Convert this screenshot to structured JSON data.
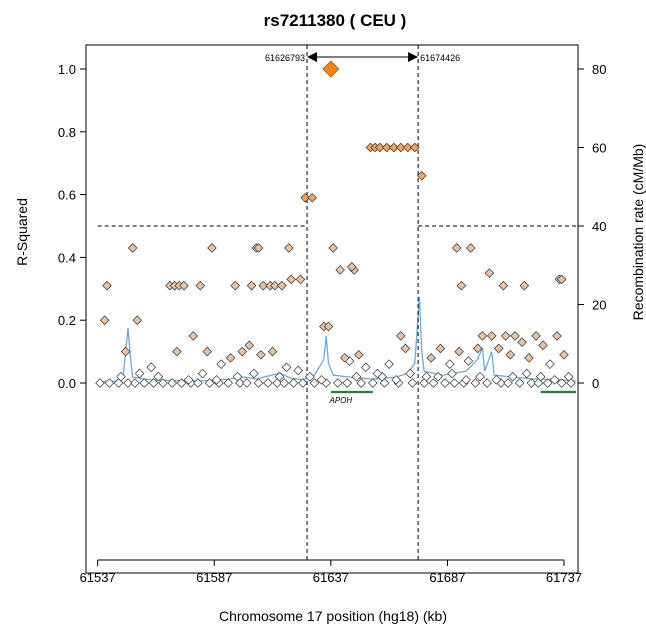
{
  "chart_data": {
    "type": "scatter",
    "title": "rs7211380 ( CEU )",
    "xlabel": "Chromosome 17 position (hg18) (kb)",
    "ylabel": "R-Squared",
    "y2label": "Recombination rate (cM/Mb)",
    "xlim": [
      61532,
      61743
    ],
    "ylim": [
      0,
      1.05
    ],
    "y2lim": [
      0,
      84
    ],
    "xticks": [
      "61537",
      "61587",
      "61637",
      "61687",
      "61737"
    ],
    "yticks": [
      "0.0",
      "0.2",
      "0.4",
      "0.6",
      "0.8",
      "1.0"
    ],
    "y2ticks": [
      "0",
      "20",
      "40",
      "60",
      "80"
    ],
    "threshold_r2": 0.5,
    "region": {
      "start": 61626.793,
      "end": 61674.426,
      "start_label": "61626793",
      "end_label": "61674426"
    },
    "index_snp": {
      "x": 61637,
      "r2": 1.0
    },
    "colors": {
      "index": "#f58220",
      "strong": "#f4a460",
      "medium": "#e9c2a6",
      "weak": "#ffffff",
      "recomb": "#6fa8dc",
      "gene": "#2e7d32"
    },
    "genes": [
      {
        "name": "APOH",
        "start": 61637,
        "end": 61655
      },
      {
        "name": "",
        "start": 61727,
        "end": 61743
      }
    ],
    "snps": [
      {
        "x": 61626,
        "r2": 0.59
      },
      {
        "x": 61629,
        "r2": 0.59
      },
      {
        "x": 61654,
        "r2": 0.75
      },
      {
        "x": 61656,
        "r2": 0.75
      },
      {
        "x": 61658,
        "r2": 0.75
      },
      {
        "x": 61661,
        "r2": 0.75
      },
      {
        "x": 61664,
        "r2": 0.75
      },
      {
        "x": 61667,
        "r2": 0.75
      },
      {
        "x": 61670,
        "r2": 0.75
      },
      {
        "x": 61673,
        "r2": 0.75
      },
      {
        "x": 61676,
        "r2": 0.66
      },
      {
        "x": 61540,
        "r2": 0.2
      },
      {
        "x": 61541,
        "r2": 0.31
      },
      {
        "x": 61552,
        "r2": 0.43
      },
      {
        "x": 61554,
        "r2": 0.2
      },
      {
        "x": 61568,
        "r2": 0.31
      },
      {
        "x": 61570,
        "r2": 0.31
      },
      {
        "x": 61572,
        "r2": 0.31
      },
      {
        "x": 61574,
        "r2": 0.31
      },
      {
        "x": 61581,
        "r2": 0.31
      },
      {
        "x": 61586,
        "r2": 0.43
      },
      {
        "x": 61596,
        "r2": 0.31
      },
      {
        "x": 61603,
        "r2": 0.31
      },
      {
        "x": 61605,
        "r2": 0.43
      },
      {
        "x": 61606,
        "r2": 0.43
      },
      {
        "x": 61608,
        "r2": 0.31
      },
      {
        "x": 61611,
        "r2": 0.31
      },
      {
        "x": 61613,
        "r2": 0.31
      },
      {
        "x": 61616,
        "r2": 0.31
      },
      {
        "x": 61619,
        "r2": 0.43
      },
      {
        "x": 61620,
        "r2": 0.33
      },
      {
        "x": 61624,
        "r2": 0.33
      },
      {
        "x": 61634,
        "r2": 0.18
      },
      {
        "x": 61636,
        "r2": 0.18
      },
      {
        "x": 61638,
        "r2": 0.43
      },
      {
        "x": 61641,
        "r2": 0.36
      },
      {
        "x": 61647,
        "r2": 0.36
      },
      {
        "x": 61646,
        "r2": 0.37
      },
      {
        "x": 61667,
        "r2": 0.15
      },
      {
        "x": 61669,
        "r2": 0.11
      },
      {
        "x": 61691,
        "r2": 0.43
      },
      {
        "x": 61693,
        "r2": 0.31
      },
      {
        "x": 61697,
        "r2": 0.43
      },
      {
        "x": 61705,
        "r2": 0.35
      },
      {
        "x": 61711,
        "r2": 0.31
      },
      {
        "x": 61720,
        "r2": 0.31
      },
      {
        "x": 61735,
        "r2": 0.33
      },
      {
        "x": 61736,
        "r2": 0.33
      },
      {
        "x": 61549,
        "r2": 0.1
      },
      {
        "x": 61560,
        "r2": 0.05
      },
      {
        "x": 61571,
        "r2": 0.1
      },
      {
        "x": 61578,
        "r2": 0.15
      },
      {
        "x": 61584,
        "r2": 0.1
      },
      {
        "x": 61590,
        "r2": 0.06
      },
      {
        "x": 61594,
        "r2": 0.08
      },
      {
        "x": 61599,
        "r2": 0.1
      },
      {
        "x": 61602,
        "r2": 0.12
      },
      {
        "x": 61607,
        "r2": 0.09
      },
      {
        "x": 61612,
        "r2": 0.1
      },
      {
        "x": 61618,
        "r2": 0.05
      },
      {
        "x": 61623,
        "r2": 0.04
      },
      {
        "x": 61643,
        "r2": 0.08
      },
      {
        "x": 61645,
        "r2": 0.07
      },
      {
        "x": 61649,
        "r2": 0.09
      },
      {
        "x": 61652,
        "r2": 0.05
      },
      {
        "x": 61657,
        "r2": 0.03
      },
      {
        "x": 61662,
        "r2": 0.06
      },
      {
        "x": 61680,
        "r2": 0.08
      },
      {
        "x": 61684,
        "r2": 0.11
      },
      {
        "x": 61688,
        "r2": 0.06
      },
      {
        "x": 61692,
        "r2": 0.1
      },
      {
        "x": 61696,
        "r2": 0.07
      },
      {
        "x": 61700,
        "r2": 0.11
      },
      {
        "x": 61702,
        "r2": 0.15
      },
      {
        "x": 61706,
        "r2": 0.15
      },
      {
        "x": 61709,
        "r2": 0.11
      },
      {
        "x": 61712,
        "r2": 0.15
      },
      {
        "x": 61714,
        "r2": 0.09
      },
      {
        "x": 61716,
        "r2": 0.15
      },
      {
        "x": 61719,
        "r2": 0.13
      },
      {
        "x": 61722,
        "r2": 0.08
      },
      {
        "x": 61725,
        "r2": 0.15
      },
      {
        "x": 61728,
        "r2": 0.12
      },
      {
        "x": 61731,
        "r2": 0.06
      },
      {
        "x": 61734,
        "r2": 0.15
      },
      {
        "x": 61737,
        "r2": 0.09
      },
      {
        "x": 61547,
        "r2": 0.02
      },
      {
        "x": 61555,
        "r2": 0.03
      },
      {
        "x": 61563,
        "r2": 0.02
      },
      {
        "x": 61576,
        "r2": 0.01
      },
      {
        "x": 61582,
        "r2": 0.03
      },
      {
        "x": 61588,
        "r2": 0.01
      },
      {
        "x": 61597,
        "r2": 0.02
      },
      {
        "x": 61604,
        "r2": 0.03
      },
      {
        "x": 61615,
        "r2": 0.02
      },
      {
        "x": 61628,
        "r2": 0.02
      },
      {
        "x": 61633,
        "r2": 0.01
      },
      {
        "x": 61648,
        "r2": 0.02
      },
      {
        "x": 61659,
        "r2": 0.02
      },
      {
        "x": 61665,
        "r2": 0.01
      },
      {
        "x": 61671,
        "r2": 0.03
      },
      {
        "x": 61678,
        "r2": 0.02
      },
      {
        "x": 61683,
        "r2": 0.02
      },
      {
        "x": 61689,
        "r2": 0.03
      },
      {
        "x": 61695,
        "r2": 0.01
      },
      {
        "x": 61701,
        "r2": 0.02
      },
      {
        "x": 61708,
        "r2": 0.01
      },
      {
        "x": 61715,
        "r2": 0.02
      },
      {
        "x": 61721,
        "r2": 0.03
      },
      {
        "x": 61727,
        "r2": 0.02
      },
      {
        "x": 61733,
        "r2": 0.01
      },
      {
        "x": 61739,
        "r2": 0.02
      },
      {
        "x": 61538,
        "r2": 0.0
      },
      {
        "x": 61542,
        "r2": 0.0
      },
      {
        "x": 61546,
        "r2": 0.0
      },
      {
        "x": 61550,
        "r2": 0.0
      },
      {
        "x": 61553,
        "r2": 0.0
      },
      {
        "x": 61557,
        "r2": 0.0
      },
      {
        "x": 61561,
        "r2": 0.0
      },
      {
        "x": 61565,
        "r2": 0.0
      },
      {
        "x": 61569,
        "r2": 0.0
      },
      {
        "x": 61573,
        "r2": 0.0
      },
      {
        "x": 61577,
        "r2": 0.0
      },
      {
        "x": 61580,
        "r2": 0.0
      },
      {
        "x": 61585,
        "r2": 0.0
      },
      {
        "x": 61589,
        "r2": 0.0
      },
      {
        "x": 61593,
        "r2": 0.0
      },
      {
        "x": 61598,
        "r2": 0.0
      },
      {
        "x": 61601,
        "r2": 0.0
      },
      {
        "x": 61606,
        "r2": 0.0
      },
      {
        "x": 61610,
        "r2": 0.0
      },
      {
        "x": 61614,
        "r2": 0.0
      },
      {
        "x": 61617,
        "r2": 0.0
      },
      {
        "x": 61621,
        "r2": 0.0
      },
      {
        "x": 61625,
        "r2": 0.0
      },
      {
        "x": 61630,
        "r2": 0.0
      },
      {
        "x": 61635,
        "r2": 0.0
      },
      {
        "x": 61640,
        "r2": 0.0
      },
      {
        "x": 61644,
        "r2": 0.0
      },
      {
        "x": 61650,
        "r2": 0.0
      },
      {
        "x": 61655,
        "r2": 0.0
      },
      {
        "x": 61660,
        "r2": 0.0
      },
      {
        "x": 61666,
        "r2": 0.0
      },
      {
        "x": 61672,
        "r2": 0.0
      },
      {
        "x": 61677,
        "r2": 0.0
      },
      {
        "x": 61681,
        "r2": 0.0
      },
      {
        "x": 61686,
        "r2": 0.0
      },
      {
        "x": 61690,
        "r2": 0.0
      },
      {
        "x": 61694,
        "r2": 0.0
      },
      {
        "x": 61699,
        "r2": 0.0
      },
      {
        "x": 61704,
        "r2": 0.0
      },
      {
        "x": 61710,
        "r2": 0.0
      },
      {
        "x": 61713,
        "r2": 0.0
      },
      {
        "x": 61718,
        "r2": 0.0
      },
      {
        "x": 61723,
        "r2": 0.0
      },
      {
        "x": 61726,
        "r2": 0.0
      },
      {
        "x": 61730,
        "r2": 0.0
      },
      {
        "x": 61736,
        "r2": 0.0
      },
      {
        "x": 61740,
        "r2": 0.0
      }
    ],
    "recombination": [
      [
        61537,
        0.3
      ],
      [
        61545,
        0.5
      ],
      [
        61548,
        2
      ],
      [
        61550,
        14
      ],
      [
        61551,
        7
      ],
      [
        61552,
        1.5
      ],
      [
        61560,
        0.8
      ],
      [
        61570,
        0.6
      ],
      [
        61580,
        0.5
      ],
      [
        61590,
        0.8
      ],
      [
        61600,
        1.5
      ],
      [
        61605,
        1
      ],
      [
        61615,
        2.5
      ],
      [
        61620,
        1.2
      ],
      [
        61625,
        0.8
      ],
      [
        61630,
        2
      ],
      [
        61634,
        6
      ],
      [
        61635,
        12
      ],
      [
        61636,
        5
      ],
      [
        61638,
        2
      ],
      [
        61645,
        1.5
      ],
      [
        61655,
        1
      ],
      [
        61665,
        1.5
      ],
      [
        61670,
        2.5
      ],
      [
        61673,
        5
      ],
      [
        61675,
        22
      ],
      [
        61676,
        8
      ],
      [
        61677,
        3
      ],
      [
        61685,
        2
      ],
      [
        61695,
        3
      ],
      [
        61700,
        6
      ],
      [
        61702,
        9
      ],
      [
        61703,
        3
      ],
      [
        61706,
        8
      ],
      [
        61707,
        2
      ],
      [
        61715,
        1.5
      ],
      [
        61725,
        1
      ],
      [
        61735,
        0.8
      ],
      [
        61742,
        0.5
      ]
    ]
  }
}
